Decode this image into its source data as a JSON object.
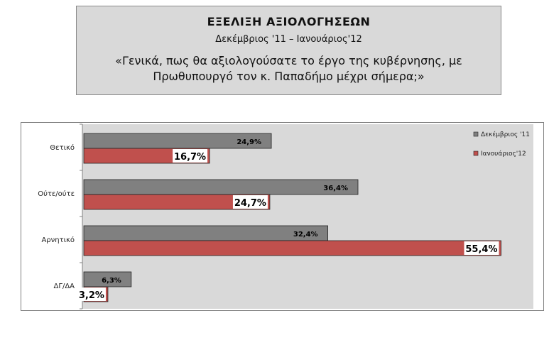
{
  "header": {
    "title": "ΕΞΕΛΙΞΗ ΑΞΙΟΛΟΓΗΣΕΩΝ",
    "subtitle": "Δεκέμβριος '11 – Ιανουάριος'12",
    "question_line1": "«Γενικά, πως θα αξιολογούσατε το έργο της κυβέρνησης, με",
    "question_line2": "Πρωθυπουργό τον κ. Παπαδήμο μέχρι σήμερα;»"
  },
  "chart_data": {
    "type": "bar",
    "orientation": "horizontal",
    "categories": [
      "Θετικό",
      "Ούτε/ούτε",
      "Αρνητικό",
      "ΔΓ/ΔΑ"
    ],
    "series": [
      {
        "name": "Δεκέμβριος '11",
        "values": [
          24.9,
          36.4,
          32.4,
          6.3
        ],
        "labels": [
          "24,9%",
          "36,4%",
          "32,4%",
          "6,3%"
        ],
        "color": "#808080"
      },
      {
        "name": "Ιανουάριος'12",
        "values": [
          16.7,
          24.7,
          55.4,
          3.2
        ],
        "labels": [
          "16,7%",
          "24,7%",
          "55,4%",
          "3,2%"
        ],
        "color": "#c0504d"
      }
    ],
    "xlim": [
      0,
      60
    ],
    "plot_background": "#d9d9d9",
    "grid": false,
    "legend_position": "top-right"
  }
}
